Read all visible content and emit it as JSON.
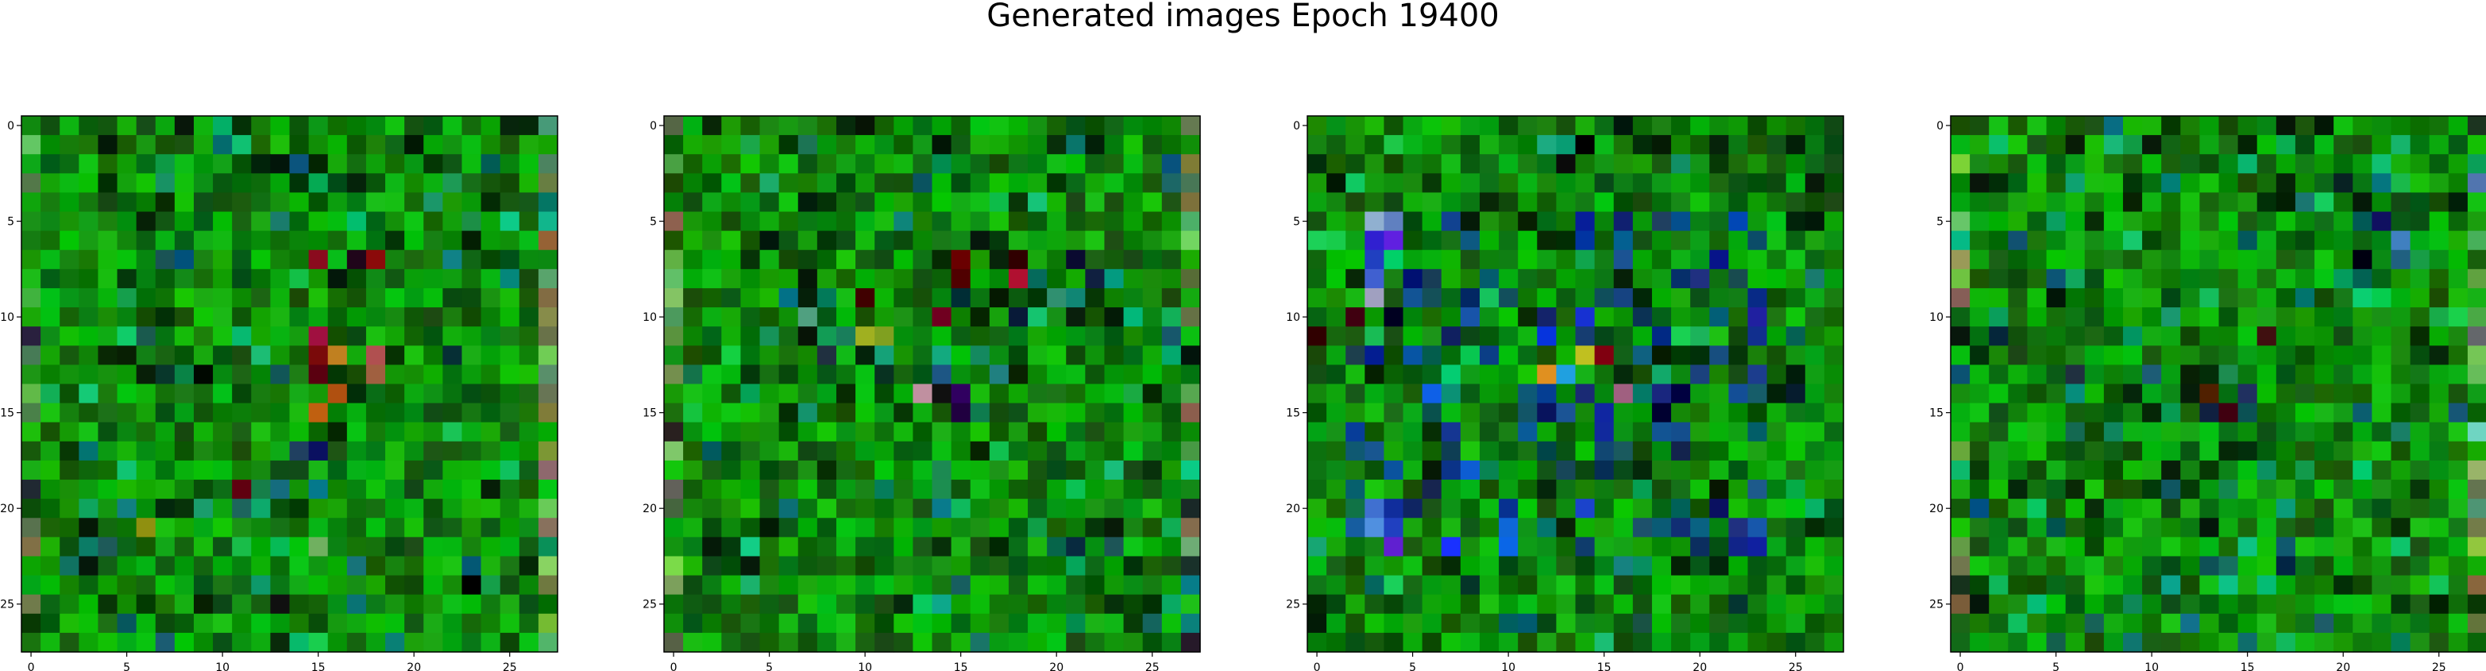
{
  "figure": {
    "title": "Generated images Epoch 19400"
  },
  "chart_data": [
    {
      "type": "heatmap",
      "subplot": 1,
      "image_shape": [
        28,
        28
      ],
      "xlim": [
        -0.5,
        27.5
      ],
      "ylim": [
        27.5,
        -0.5
      ],
      "xticks": [
        0,
        5,
        10,
        15,
        20,
        25
      ],
      "yticks": [
        0,
        5,
        10,
        15,
        20,
        25
      ],
      "seed": 11,
      "hot_pixels": [
        [
          7,
          15,
          "#8a0b1e"
        ],
        [
          7,
          18,
          "#8b0a0a"
        ],
        [
          7,
          17,
          "#20051a"
        ],
        [
          11,
          15,
          "#a01040"
        ],
        [
          12,
          15,
          "#7a0a0a"
        ],
        [
          12,
          16,
          "#c08020"
        ],
        [
          13,
          15,
          "#5a0010"
        ],
        [
          14,
          16,
          "#b05010"
        ],
        [
          15,
          15,
          "#c06010"
        ],
        [
          12,
          18,
          "#b05050"
        ],
        [
          13,
          18,
          "#a06040"
        ],
        [
          13,
          9,
          "#000800"
        ],
        [
          17,
          15,
          "#0a1060"
        ],
        [
          17,
          14,
          "#204060"
        ],
        [
          19,
          11,
          "#600010"
        ],
        [
          21,
          6,
          "#909010"
        ],
        [
          22,
          15,
          "#70b060"
        ],
        [
          25,
          13,
          "#101010"
        ],
        [
          24,
          23,
          "#000000"
        ]
      ]
    },
    {
      "type": "heatmap",
      "subplot": 2,
      "image_shape": [
        28,
        28
      ],
      "xlim": [
        -0.5,
        27.5
      ],
      "ylim": [
        27.5,
        -0.5
      ],
      "xticks": [
        0,
        5,
        10,
        15,
        20,
        25
      ],
      "yticks": [
        0,
        5,
        10,
        15,
        20,
        25
      ],
      "seed": 23,
      "hot_pixels": [
        [
          7,
          15,
          "#6a0000"
        ],
        [
          8,
          15,
          "#500000"
        ],
        [
          7,
          18,
          "#300000"
        ],
        [
          8,
          18,
          "#b01030"
        ],
        [
          7,
          21,
          "#0a0a30"
        ],
        [
          8,
          22,
          "#102040"
        ],
        [
          9,
          10,
          "#400000"
        ],
        [
          10,
          14,
          "#700020"
        ],
        [
          11,
          10,
          "#a0b020"
        ],
        [
          11,
          11,
          "#80a020"
        ],
        [
          14,
          13,
          "#c090a0"
        ],
        [
          14,
          15,
          "#300060"
        ],
        [
          15,
          15,
          "#200040"
        ],
        [
          14,
          14,
          "#101010"
        ],
        [
          12,
          8,
          "#203040"
        ],
        [
          10,
          7,
          "#50a080"
        ],
        [
          13,
          17,
          "#208080"
        ],
        [
          9,
          20,
          "#309070"
        ]
      ]
    },
    {
      "type": "heatmap",
      "subplot": 3,
      "image_shape": [
        28,
        28
      ],
      "xlim": [
        -0.5,
        27.5
      ],
      "ylim": [
        27.5,
        -0.5
      ],
      "xticks": [
        0,
        5,
        10,
        15,
        20,
        25
      ],
      "yticks": [
        0,
        5,
        10,
        15,
        20,
        25
      ],
      "seed": 37,
      "hot_pixels": [
        [
          5,
          3,
          "#90b0d0"
        ],
        [
          5,
          4,
          "#6080c0"
        ],
        [
          6,
          3,
          "#3020d0"
        ],
        [
          6,
          4,
          "#6020e0"
        ],
        [
          7,
          3,
          "#2040c0"
        ],
        [
          8,
          3,
          "#4060d0"
        ],
        [
          9,
          3,
          "#a0a0c0"
        ],
        [
          10,
          2,
          "#400010"
        ],
        [
          10,
          4,
          "#000020"
        ],
        [
          11,
          0,
          "#300000"
        ],
        [
          13,
          12,
          "#e09020"
        ],
        [
          13,
          13,
          "#20a0e0"
        ],
        [
          12,
          15,
          "#800010"
        ],
        [
          12,
          14,
          "#c0c020"
        ],
        [
          14,
          16,
          "#a06080"
        ],
        [
          15,
          18,
          "#000030"
        ],
        [
          14,
          19,
          "#000040"
        ],
        [
          20,
          3,
          "#4070d0"
        ],
        [
          21,
          3,
          "#5090e0"
        ],
        [
          22,
          4,
          "#6020d0"
        ],
        [
          21,
          4,
          "#2040c0"
        ],
        [
          20,
          21,
          "#0a1060"
        ],
        [
          21,
          22,
          "#203080"
        ],
        [
          22,
          23,
          "#1020a0"
        ],
        [
          5,
          16,
          "#102070"
        ],
        [
          5,
          18,
          "#204060"
        ],
        [
          8,
          20,
          "#203080"
        ],
        [
          10,
          23,
          "#2020a0"
        ],
        [
          1,
          14,
          "#000000"
        ],
        [
          2,
          13,
          "#0a0a0a"
        ],
        [
          11,
          7,
          "#102060"
        ]
      ]
    },
    {
      "type": "heatmap",
      "subplot": 4,
      "image_shape": [
        28,
        28
      ],
      "xlim": [
        -0.5,
        27.5
      ],
      "ylim": [
        27.5,
        -0.5
      ],
      "xticks": [
        0,
        5,
        10,
        15,
        20,
        25
      ],
      "yticks": [
        0,
        5,
        10,
        15,
        20,
        25
      ],
      "seed": 53,
      "hot_pixels": [
        [
          5,
          22,
          "#101060"
        ],
        [
          7,
          21,
          "#000010"
        ],
        [
          6,
          23,
          "#4080c0"
        ],
        [
          7,
          23,
          "#206080"
        ],
        [
          14,
          13,
          "#502000"
        ],
        [
          15,
          13,
          "#102040"
        ],
        [
          14,
          15,
          "#203060"
        ],
        [
          15,
          14,
          "#400010"
        ],
        [
          11,
          16,
          "#401010"
        ],
        [
          13,
          6,
          "#203040"
        ]
      ]
    }
  ]
}
